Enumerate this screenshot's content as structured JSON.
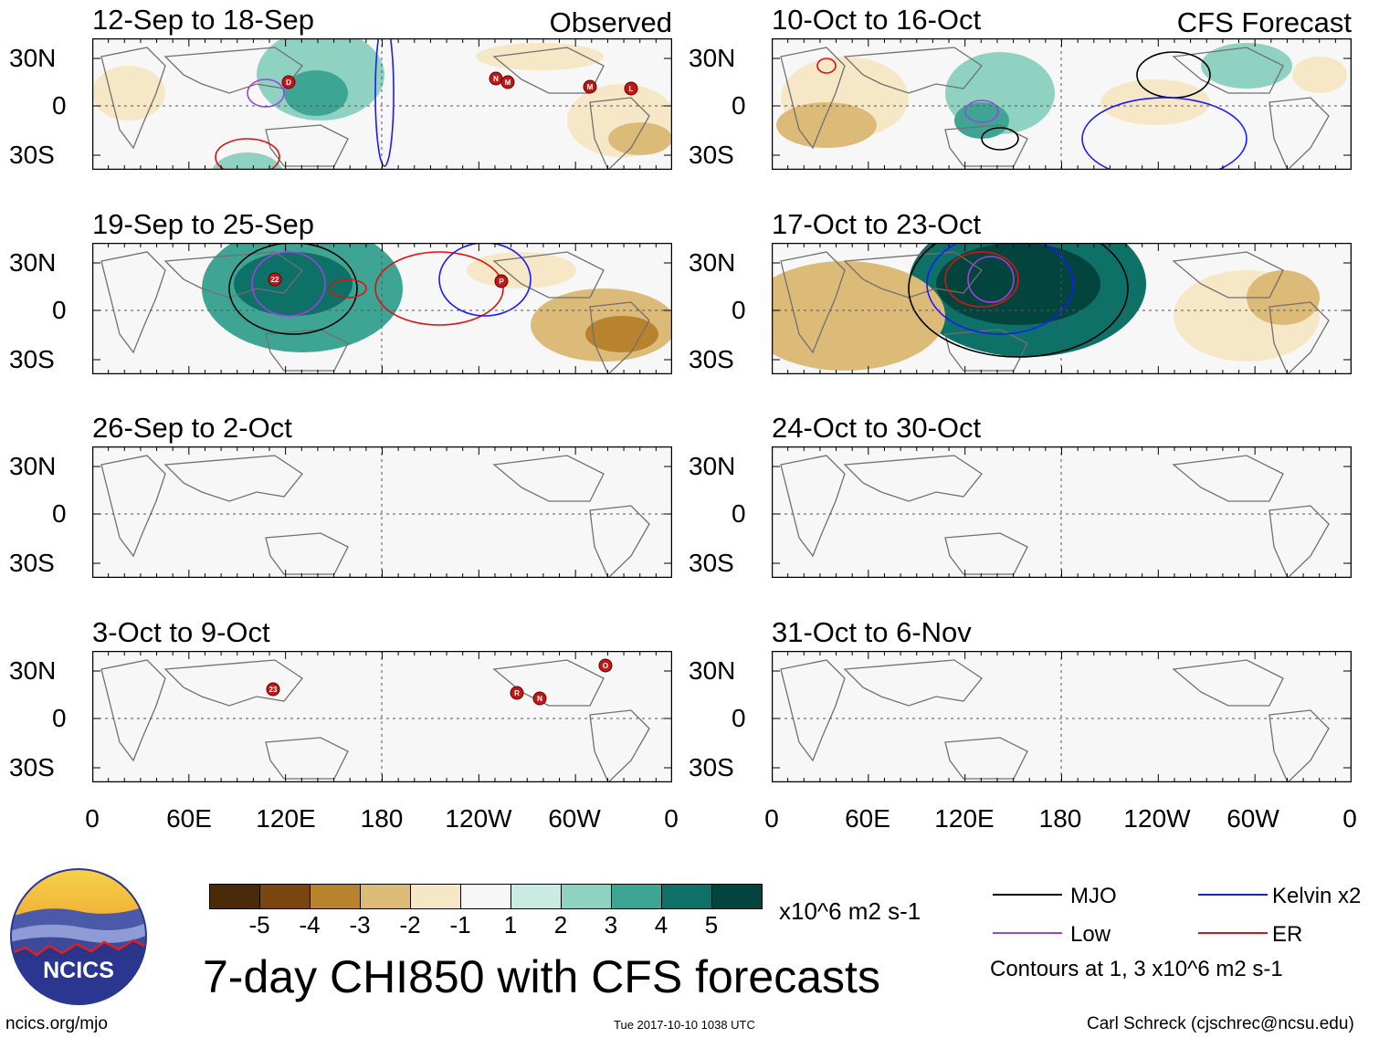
{
  "observed_label": "Observed",
  "forecast_label": "CFS Forecast",
  "observed_panels": [
    {
      "period": "12-Sep to 18-Sep",
      "storms": [
        "D",
        "N",
        "M",
        "M",
        "L"
      ]
    },
    {
      "period": "19-Sep to 25-Sep",
      "storms": [
        "22",
        "P"
      ]
    },
    {
      "period": "26-Sep to 2-Oct",
      "storms": []
    },
    {
      "period": "3-Oct to 9-Oct",
      "storms": [
        "23",
        "R",
        "N",
        "O"
      ]
    }
  ],
  "forecast_panels": [
    {
      "period": "10-Oct to 16-Oct"
    },
    {
      "period": "17-Oct to 23-Oct"
    },
    {
      "period": "24-Oct to 30-Oct"
    },
    {
      "period": "31-Oct to 6-Nov"
    }
  ],
  "lat_labels": [
    "30N",
    "0",
    "30S"
  ],
  "lon_labels": [
    "0",
    "60E",
    "120E",
    "180",
    "120W",
    "60W",
    "0"
  ],
  "colorbar": {
    "ticks": [
      "-5",
      "-4",
      "-3",
      "-2",
      "-1",
      "1",
      "2",
      "3",
      "4",
      "5"
    ],
    "colors": [
      "#4a2a08",
      "#7a4510",
      "#b9822e",
      "#dcba78",
      "#f6e8c6",
      "#f7f7f7",
      "#c9ebe2",
      "#8fd2c2",
      "#3ea595",
      "#0e7168",
      "#03453e"
    ],
    "units": "x10^6 m2 s-1"
  },
  "legend": {
    "mjo": "MJO",
    "low": "Low",
    "kelvin": "Kelvin x2",
    "er": "ER",
    "contours_note": "Contours at 1, 3 x10^6 m2 s-1",
    "colors": {
      "mjo": "#000000",
      "low": "#a040e0",
      "kelvin": "#1a1aff",
      "er": "#e01010"
    }
  },
  "logo_text": "NCICS",
  "main_title": "7-day CHI850 with CFS forecasts",
  "footer": {
    "url": "ncics.org/mjo",
    "timestamp": "Tue 2017-10-10 1038 UTC",
    "author": "Carl Schreck (cjschrec@ncsu.edu)"
  }
}
